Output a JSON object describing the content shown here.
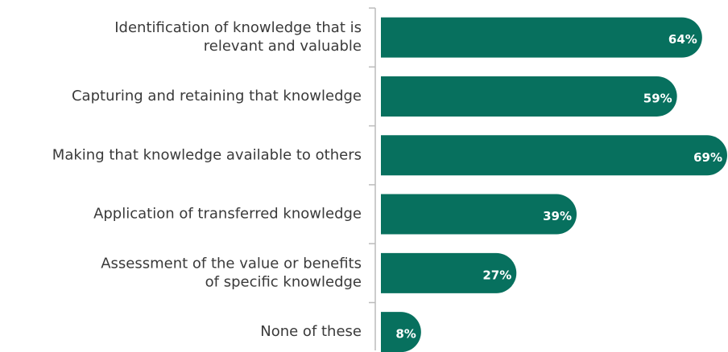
{
  "chart_data": {
    "type": "bar",
    "orientation": "horizontal",
    "categories": [
      [
        "Identification of knowledge that is",
        "relevant and valuable"
      ],
      [
        "Capturing and retaining that knowledge"
      ],
      [
        "Making that knowledge available to others"
      ],
      [
        "Application of transferred knowledge"
      ],
      [
        "Assessment of the value or benefits",
        "of specific knowledge"
      ],
      [
        "None of these"
      ]
    ],
    "values": [
      64,
      59,
      69,
      39,
      27,
      8
    ],
    "value_labels": [
      "64%",
      "59%",
      "69%",
      "39%",
      "27%",
      "8%"
    ],
    "color": "#07705e"
  }
}
